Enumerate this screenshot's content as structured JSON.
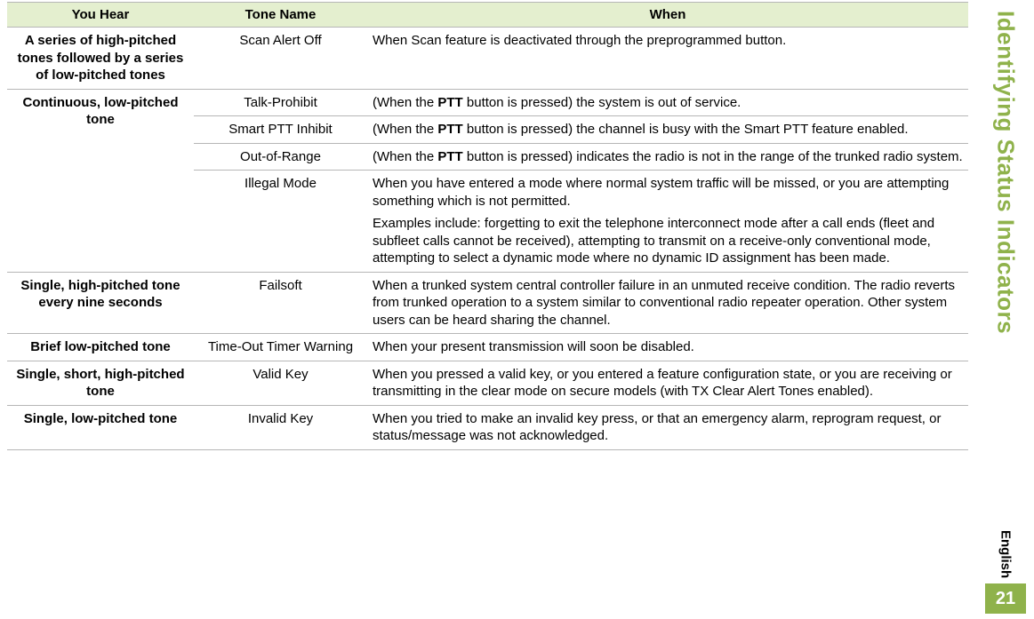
{
  "sidebar": {
    "section_title": "Identifying Status Indicators",
    "language": "English",
    "page_number": "21",
    "accent_color": "#8fb24b",
    "header_bg": "#e4efcf"
  },
  "table": {
    "headers": {
      "col1": "You Hear",
      "col2": "Tone Name",
      "col3": "When"
    },
    "r1": {
      "you_hear": "A series of high-pitched tones followed by a series of low-pitched tones",
      "tone": "Scan Alert Off",
      "when": "When Scan feature is deactivated through the preprogrammed button."
    },
    "r2": {
      "you_hear": "Continuous, low-pitched tone",
      "a": {
        "tone": "Talk-Prohibit",
        "when_pre": "(When the ",
        "when_bold": "PTT",
        "when_post": " button is pressed) the system is out of service."
      },
      "b": {
        "tone": "Smart PTT Inhibit",
        "when_pre": "(When the ",
        "when_bold": "PTT",
        "when_post": " button is pressed) the channel is busy with the Smart PTT feature enabled."
      },
      "c": {
        "tone": "Out-of-Range",
        "when_pre": "(When the ",
        "when_bold": "PTT",
        "when_post": " button is pressed) indicates the radio is not in the range of the trunked radio system."
      },
      "d": {
        "tone": "Illegal Mode",
        "when_p1": "When you have entered a mode where normal system traffic will be missed, or you are attempting something which is not permitted.",
        "when_p2": "Examples include: forgetting to exit the telephone interconnect mode after a call ends (fleet and subfleet calls cannot be received), attempting to transmit on a receive-only conventional mode, attempting to select a dynamic mode where no dynamic ID assignment has been made."
      }
    },
    "r3": {
      "you_hear": "Single, high-pitched tone every nine seconds",
      "tone": "Failsoft",
      "when": "When a trunked system central controller failure in an unmuted receive condition. The radio reverts from trunked operation to a system similar to conventional radio repeater operation. Other system users can be heard sharing the channel."
    },
    "r4": {
      "you_hear": "Brief low-pitched tone",
      "tone": "Time-Out Timer Warning",
      "when": "When your present transmission will soon be disabled."
    },
    "r5": {
      "you_hear": "Single, short, high-pitched tone",
      "tone": "Valid Key",
      "when": "When you pressed a valid key, or you entered a feature configuration state, or you are receiving or transmitting in the clear mode on secure models (with TX Clear Alert Tones enabled)."
    },
    "r6": {
      "you_hear": "Single, low-pitched tone",
      "tone": "Invalid Key",
      "when": "When you tried to make an invalid key press, or that an emergency alarm, reprogram request, or status/message was not acknowledged."
    }
  }
}
